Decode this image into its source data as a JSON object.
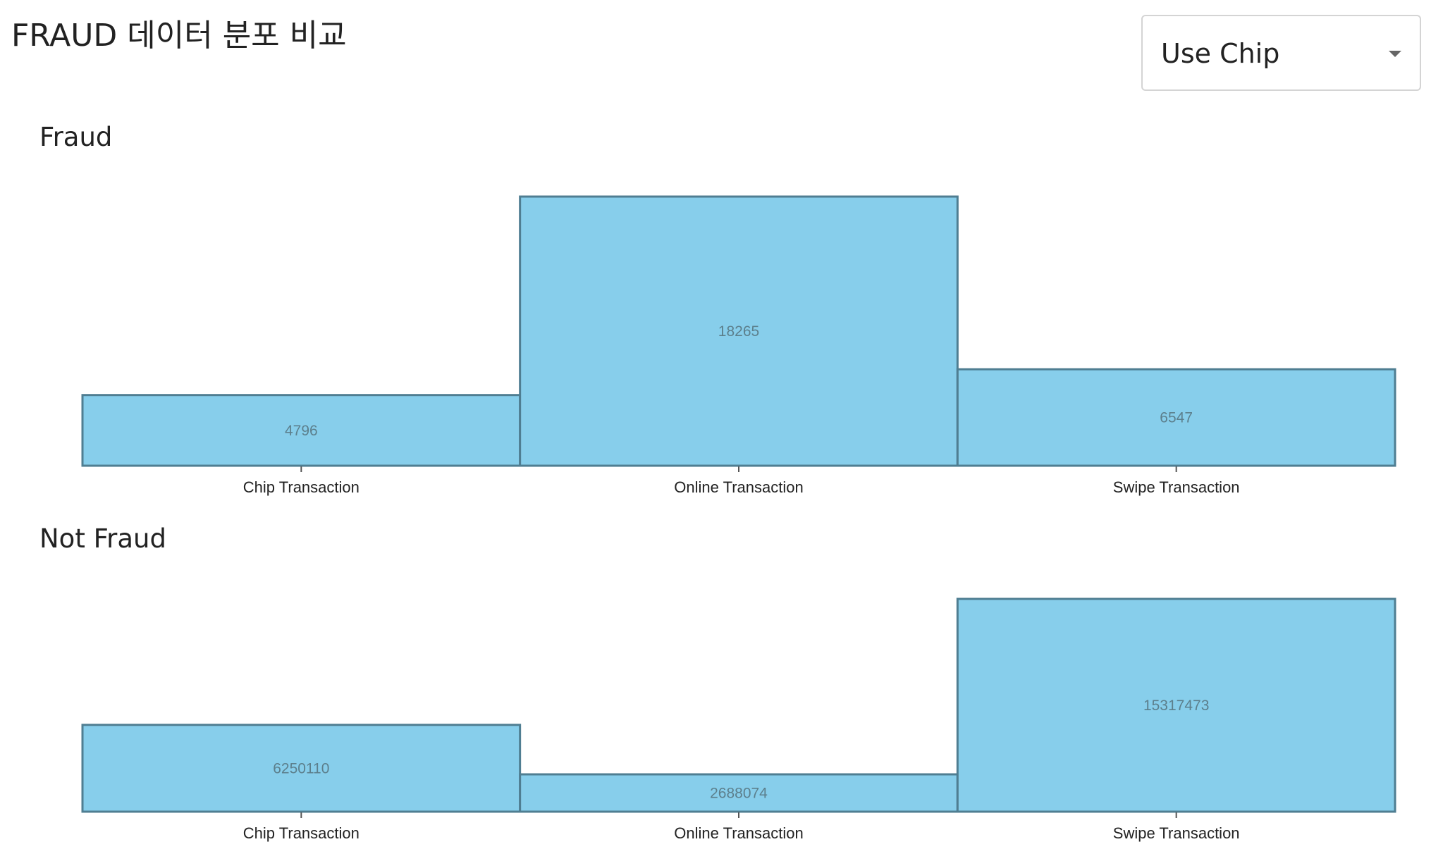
{
  "header": {
    "title": "FRAUD 데이터 분포 비교"
  },
  "filter": {
    "selected": "Use Chip",
    "caret_icon": "chevron-down-icon"
  },
  "colors": {
    "bar_fill": "#87ceeb",
    "bar_edge": "#4f7e92",
    "bar_label": "#5c7f8c"
  },
  "charts": {
    "fraud_title": "Fraud",
    "not_fraud_title": "Not Fraud"
  },
  "chart_data": [
    {
      "type": "bar",
      "title": "Fraud",
      "categories": [
        "Chip Transaction",
        "Online Transaction",
        "Swipe Transaction"
      ],
      "values": [
        4796,
        18265,
        6547
      ],
      "value_labels": [
        "4796",
        "18265",
        "6547"
      ],
      "ylim": [
        0,
        18265
      ],
      "xlabel": "",
      "ylabel": "",
      "grid": false
    },
    {
      "type": "bar",
      "title": "Not Fraud",
      "categories": [
        "Chip Transaction",
        "Online Transaction",
        "Swipe Transaction"
      ],
      "values": [
        6250110,
        2688074,
        15317473
      ],
      "value_labels": [
        "6250110",
        "2688074",
        "15317473"
      ],
      "ylim": [
        0,
        15317473
      ],
      "xlabel": "",
      "ylabel": "",
      "grid": false
    }
  ]
}
